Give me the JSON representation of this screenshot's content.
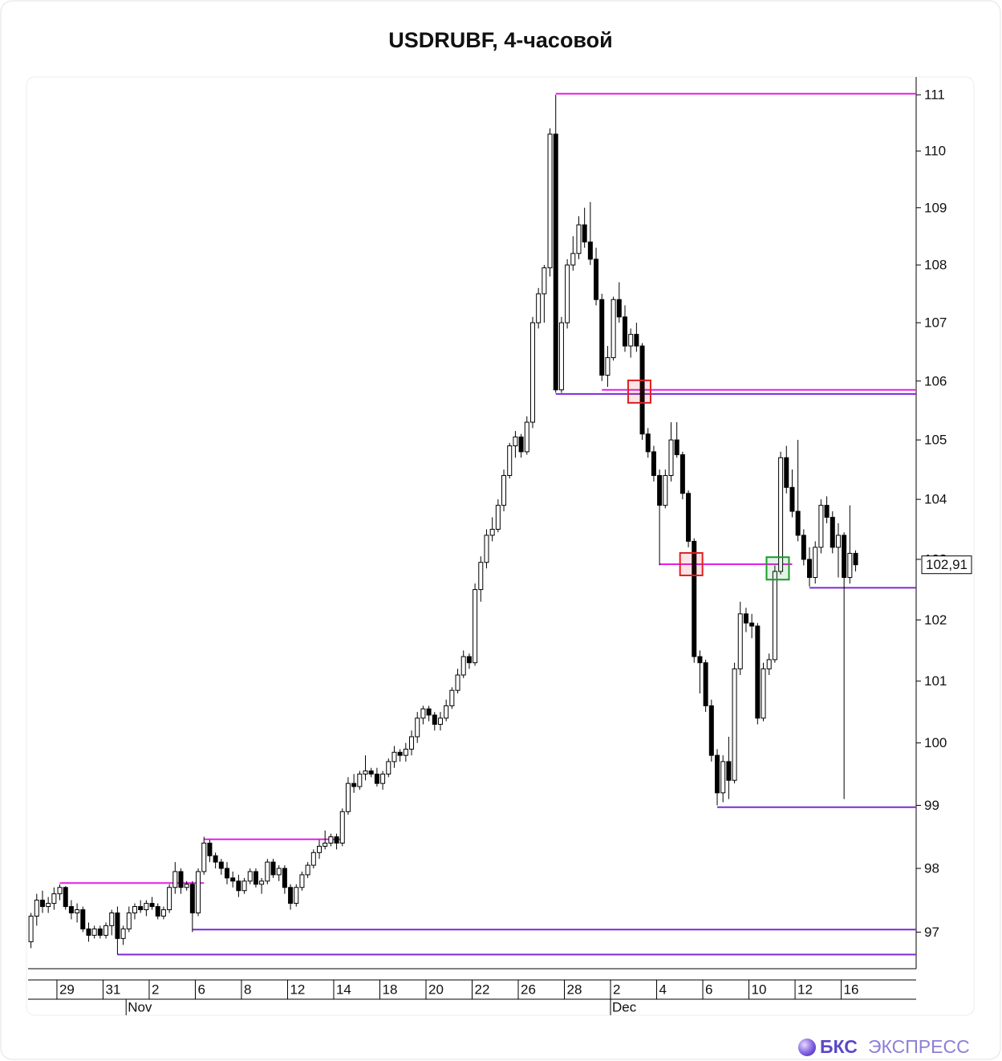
{
  "chart_data": {
    "type": "candlestick",
    "title": "USDRUBF, 4-часовой",
    "log_scale": true,
    "ylim": [
      96.43,
      111.26
    ],
    "yticks": [
      97,
      98,
      99,
      100,
      101,
      102,
      103,
      104,
      105,
      106,
      107,
      108,
      109,
      110,
      111
    ],
    "xlim": [
      -0.5,
      153.5
    ],
    "xticks": [
      {
        "value": 4.5,
        "label": "29"
      },
      {
        "value": 12.5,
        "label": "31"
      },
      {
        "value": 20.5,
        "label": "2"
      },
      {
        "value": 28.5,
        "label": "6"
      },
      {
        "value": 36.5,
        "label": "8"
      },
      {
        "value": 44.5,
        "label": "12"
      },
      {
        "value": 52.5,
        "label": "14"
      },
      {
        "value": 60.5,
        "label": "18"
      },
      {
        "value": 68.5,
        "label": "20"
      },
      {
        "value": 76.5,
        "label": "22"
      },
      {
        "value": 84.5,
        "label": "26"
      },
      {
        "value": 92.5,
        "label": "28"
      },
      {
        "value": 100.5,
        "label": "2"
      },
      {
        "value": 108.5,
        "label": "4"
      },
      {
        "value": 116.5,
        "label": "6"
      },
      {
        "value": 124.5,
        "label": "10"
      },
      {
        "value": 132.5,
        "label": "12"
      },
      {
        "value": 140.5,
        "label": "16"
      }
    ],
    "months": [
      {
        "value": 16.5,
        "label": "Nov"
      },
      {
        "value": 100.5,
        "label": "Dec"
      }
    ],
    "up_color": "#ffffff",
    "down_color": "#000000",
    "open": [
      96.85,
      97.25,
      97.5,
      97.4,
      97.45,
      97.6,
      97.7,
      97.4,
      97.3,
      97.35,
      97.05,
      96.95,
      97.05,
      96.95,
      97.1,
      97.3,
      96.9,
      97.05,
      97.3,
      97.4,
      97.35,
      97.45,
      97.4,
      97.25,
      97.35,
      97.7,
      97.95,
      97.7,
      97.75,
      97.3,
      97.95,
      98.4,
      98.2,
      98.1,
      98.0,
      97.85,
      97.8,
      97.65,
      97.8,
      97.95,
      97.75,
      97.8,
      98.1,
      97.9,
      98.0,
      97.7,
      97.45,
      97.7,
      97.9,
      98.05,
      98.25,
      98.35,
      98.4,
      98.5,
      98.4,
      98.9,
      99.35,
      99.3,
      99.5,
      99.55,
      99.5,
      99.35,
      99.5,
      99.7,
      99.85,
      99.8,
      99.9,
      100.1,
      100.4,
      100.55,
      100.45,
      100.3,
      100.4,
      100.6,
      100.85,
      101.1,
      101.4,
      101.3,
      102.5,
      102.95,
      103.4,
      103.5,
      103.9,
      104.4,
      104.9,
      105.05,
      104.8,
      105.3,
      107.0,
      107.5,
      107.95,
      110.3,
      105.85,
      107.0,
      108.0,
      108.2,
      108.7,
      108.4,
      108.1,
      107.4,
      106.1,
      106.4,
      107.4,
      107.1,
      106.6,
      106.8,
      106.6,
      105.1,
      104.8,
      104.4,
      103.9,
      104.4,
      105.0,
      104.75,
      104.1,
      103.3,
      101.4,
      101.3,
      100.6,
      99.8,
      99.2,
      99.7,
      99.4,
      101.2,
      102.1,
      101.95,
      101.9,
      100.4,
      101.2,
      101.35,
      102.8,
      104.7,
      104.2,
      103.8,
      103.4,
      103.0,
      102.7,
      103.2,
      103.9,
      103.7,
      103.2,
      103.4,
      102.7,
      103.1
    ],
    "high": [
      97.3,
      97.6,
      97.65,
      97.55,
      97.7,
      97.75,
      97.72,
      97.5,
      97.45,
      97.4,
      97.15,
      97.1,
      97.1,
      97.15,
      97.35,
      97.4,
      97.1,
      97.4,
      97.45,
      97.5,
      97.5,
      97.55,
      97.45,
      97.4,
      97.75,
      98.1,
      98.0,
      97.8,
      97.8,
      98.0,
      98.5,
      98.45,
      98.25,
      98.15,
      98.1,
      97.95,
      97.9,
      97.85,
      98.0,
      98.0,
      97.85,
      98.15,
      98.15,
      98.05,
      98.05,
      97.75,
      97.75,
      97.95,
      98.1,
      98.3,
      98.45,
      98.6,
      98.55,
      98.55,
      98.95,
      99.45,
      99.5,
      99.55,
      99.8,
      99.6,
      99.6,
      99.55,
      99.75,
      99.95,
      99.9,
      100.0,
      100.2,
      100.5,
      100.6,
      100.6,
      100.5,
      100.5,
      100.7,
      100.9,
      101.2,
      101.5,
      101.45,
      102.6,
      103.05,
      103.5,
      103.7,
      104.0,
      104.5,
      104.95,
      105.15,
      105.1,
      105.4,
      107.1,
      107.6,
      108.0,
      110.4,
      111.0,
      107.1,
      108.1,
      108.5,
      108.85,
      109.0,
      109.1,
      108.3,
      107.5,
      106.6,
      107.45,
      107.7,
      107.3,
      106.9,
      107.0,
      106.65,
      105.2,
      104.9,
      104.5,
      104.5,
      105.3,
      105.3,
      104.8,
      104.15,
      103.35,
      101.5,
      101.35,
      100.7,
      99.9,
      99.8,
      100.1,
      101.3,
      102.3,
      102.2,
      102.1,
      101.95,
      101.3,
      101.45,
      102.9,
      104.8,
      104.9,
      104.5,
      105.0,
      103.5,
      103.2,
      103.3,
      104.0,
      104.05,
      103.8,
      103.6,
      103.45,
      103.9,
      103.15
    ],
    "low": [
      96.75,
      97.1,
      97.3,
      97.3,
      97.35,
      97.5,
      97.35,
      97.2,
      97.15,
      97.0,
      96.85,
      96.9,
      96.9,
      96.9,
      96.95,
      96.65,
      96.8,
      97.0,
      97.2,
      97.3,
      97.25,
      97.35,
      97.2,
      97.2,
      97.3,
      97.6,
      97.6,
      97.65,
      97.0,
      97.25,
      97.9,
      98.1,
      98.0,
      97.9,
      97.75,
      97.7,
      97.55,
      97.6,
      97.75,
      97.7,
      97.6,
      97.75,
      97.85,
      97.8,
      97.6,
      97.35,
      97.4,
      97.65,
      97.85,
      98.0,
      98.15,
      98.3,
      98.35,
      98.3,
      98.35,
      98.85,
      99.2,
      99.25,
      99.4,
      99.45,
      99.3,
      99.25,
      99.45,
      99.6,
      99.7,
      99.7,
      99.8,
      100.0,
      100.3,
      100.35,
      100.2,
      100.2,
      100.35,
      100.55,
      100.8,
      101.05,
      101.2,
      101.25,
      102.3,
      102.85,
      103.3,
      103.45,
      103.8,
      104.35,
      104.7,
      104.7,
      104.75,
      105.2,
      106.9,
      107.0,
      107.8,
      105.8,
      105.8,
      106.9,
      107.9,
      108.1,
      108.3,
      108.0,
      107.3,
      106.0,
      105.9,
      106.35,
      107.0,
      106.5,
      106.4,
      106.5,
      105.0,
      104.7,
      104.3,
      102.9,
      103.85,
      104.3,
      104.7,
      104.0,
      103.2,
      101.3,
      100.8,
      100.5,
      99.7,
      99.0,
      99.05,
      99.1,
      99.35,
      101.1,
      101.8,
      101.7,
      100.3,
      100.35,
      101.1,
      101.3,
      102.75,
      104.1,
      103.7,
      103.3,
      102.9,
      102.55,
      102.6,
      103.1,
      103.6,
      103.1,
      102.7,
      99.1,
      102.6,
      102.8
    ],
    "close": [
      97.25,
      97.5,
      97.4,
      97.45,
      97.6,
      97.7,
      97.4,
      97.3,
      97.35,
      97.05,
      96.95,
      97.05,
      96.95,
      97.1,
      97.3,
      96.9,
      97.05,
      97.3,
      97.4,
      97.35,
      97.45,
      97.4,
      97.25,
      97.35,
      97.7,
      97.95,
      97.7,
      97.75,
      97.3,
      97.95,
      98.4,
      98.2,
      98.1,
      98.0,
      97.85,
      97.8,
      97.65,
      97.8,
      97.95,
      97.75,
      97.8,
      98.1,
      97.9,
      98.0,
      97.7,
      97.45,
      97.7,
      97.9,
      98.05,
      98.25,
      98.35,
      98.4,
      98.5,
      98.4,
      98.9,
      99.35,
      99.3,
      99.5,
      99.55,
      99.5,
      99.35,
      99.5,
      99.7,
      99.85,
      99.8,
      99.9,
      100.1,
      100.4,
      100.55,
      100.45,
      100.3,
      100.4,
      100.6,
      100.85,
      101.1,
      101.4,
      101.3,
      102.5,
      102.95,
      103.4,
      103.5,
      103.9,
      104.4,
      104.9,
      105.05,
      104.8,
      105.3,
      107.0,
      107.5,
      107.95,
      110.3,
      105.85,
      107.0,
      108.0,
      108.2,
      108.7,
      108.4,
      108.1,
      107.4,
      106.1,
      106.4,
      107.4,
      107.1,
      106.6,
      106.8,
      106.6,
      105.1,
      104.8,
      104.4,
      103.9,
      104.4,
      105.0,
      104.75,
      104.1,
      103.3,
      101.4,
      101.3,
      100.6,
      99.8,
      99.2,
      99.7,
      99.4,
      101.2,
      102.1,
      101.95,
      101.9,
      100.4,
      101.2,
      101.35,
      102.8,
      104.7,
      104.2,
      103.8,
      103.4,
      103.0,
      102.7,
      103.2,
      103.9,
      103.7,
      103.2,
      103.4,
      102.7,
      103.1,
      102.91
    ],
    "levels": [
      {
        "value": 111.02,
        "from": 91,
        "color": "#e61ee6"
      },
      {
        "value": 105.85,
        "from": 99,
        "color": "#e61ee6"
      },
      {
        "value": 105.78,
        "from": 91,
        "color": "#7a2ad8"
      },
      {
        "value": 102.92,
        "from": 109,
        "to": 132,
        "color": "#e61ee6"
      },
      {
        "value": 102.53,
        "from": 135,
        "color": "#7a2ad8"
      },
      {
        "value": 98.97,
        "from": 119,
        "color": "#7a2ad8"
      },
      {
        "value": 98.46,
        "from": 30,
        "to": 54,
        "color": "#e61ee6"
      },
      {
        "value": 97.77,
        "from": 5,
        "to": 30,
        "color": "#e61ee6"
      },
      {
        "value": 97.04,
        "from": 28,
        "color": "#7a2ad8"
      },
      {
        "value": 96.65,
        "from": 15,
        "color": "#7a2ad8"
      }
    ],
    "markers": [
      {
        "x": 105.5,
        "y": 105.82,
        "color": "#e02020"
      },
      {
        "x": 114.5,
        "y": 102.92,
        "color": "#e02020"
      },
      {
        "x": 129.5,
        "y": 102.85,
        "color": "#1a9a2a"
      }
    ],
    "last_price": {
      "value": 102.91,
      "label": "102,91"
    }
  },
  "brand": {
    "name": "БКС",
    "product": "ЭКСПРЕСС"
  }
}
